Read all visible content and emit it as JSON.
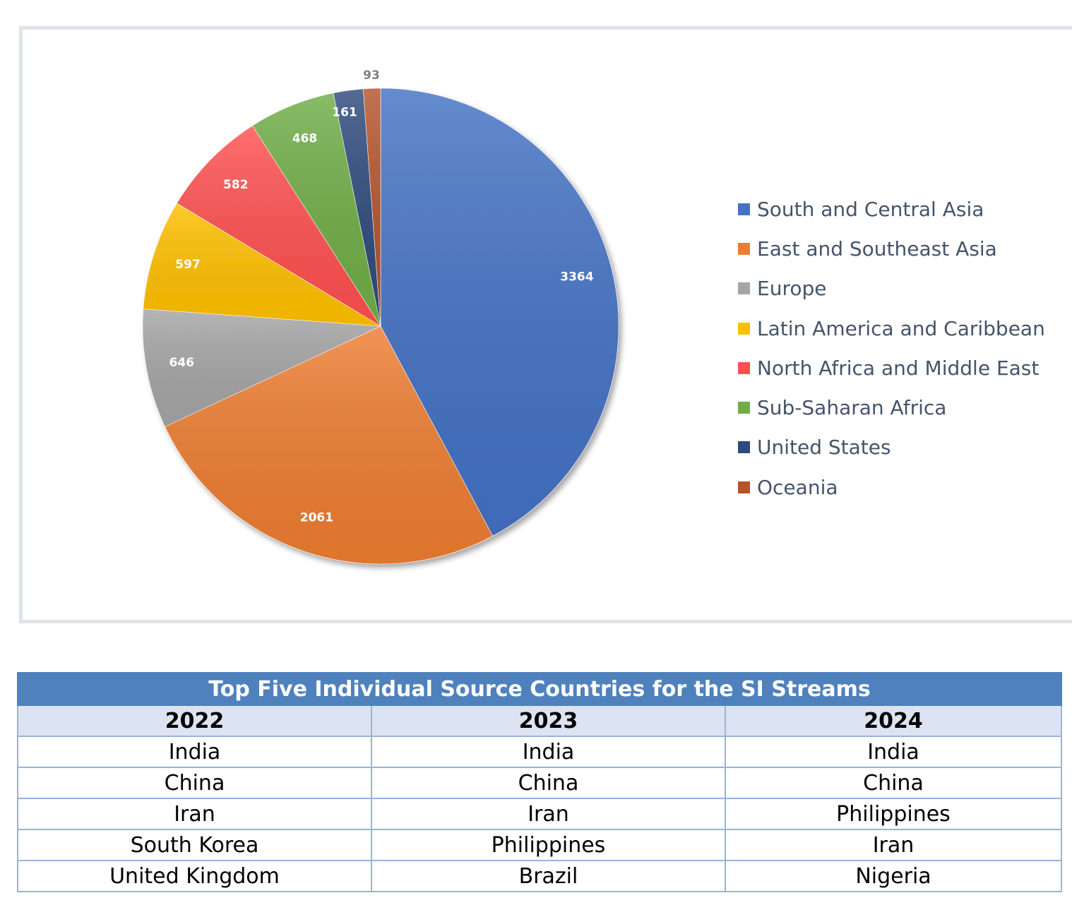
{
  "chart_data": {
    "type": "pie",
    "categories": [
      "South and Central Asia",
      "East and Southeast Asia",
      "Europe",
      "Latin America and Caribbean",
      "North Africa and Middle East",
      "Sub-Saharan Africa",
      "United States",
      "Oceania"
    ],
    "values": [
      3364,
      2061,
      646,
      597,
      582,
      468,
      161,
      93
    ],
    "colors": [
      "#4472c4",
      "#ed7d31",
      "#a5a5a5",
      "#ffc000",
      "#ff5050",
      "#70ad47",
      "#2f4a7d",
      "#b5542a"
    ],
    "data_labels": [
      "3364",
      "2061",
      "646",
      "597",
      "582",
      "468",
      "161",
      "93"
    ],
    "legend_position": "right",
    "title": ""
  },
  "table": {
    "title": "Top Five Individual Source Countries for the SI Streams",
    "headers": [
      "2022",
      "2023",
      "2024"
    ],
    "rows": [
      [
        "India",
        "India",
        "India"
      ],
      [
        "China",
        "China",
        "China"
      ],
      [
        "Iran",
        "Iran",
        "Philippines"
      ],
      [
        "South Korea",
        "Philippines",
        "Iran"
      ],
      [
        "United Kingdom",
        "Brazil",
        "Nigeria"
      ]
    ]
  }
}
